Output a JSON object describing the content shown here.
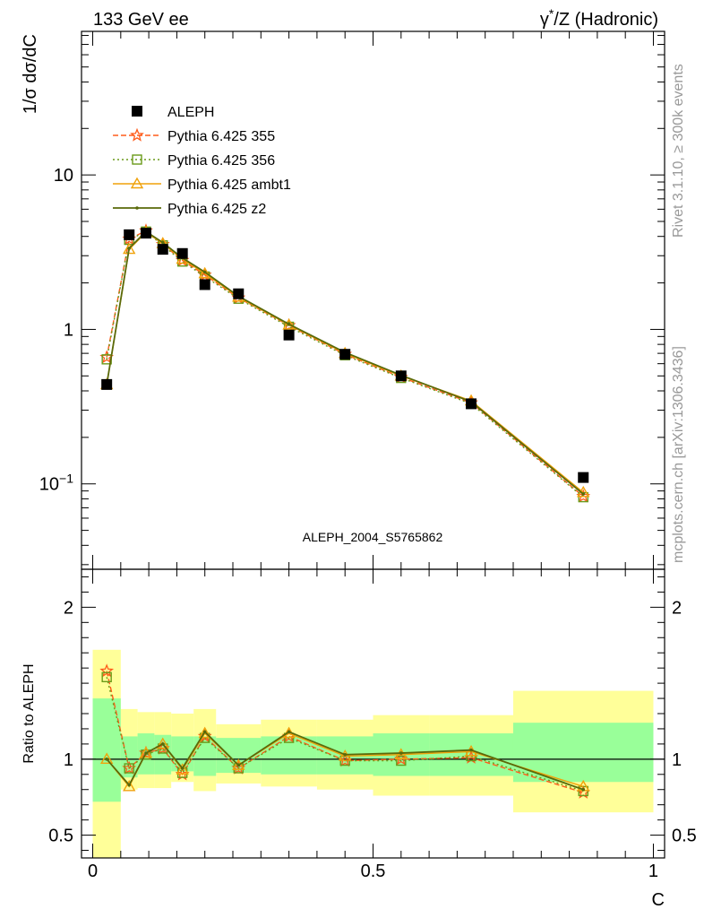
{
  "header": {
    "left": "133 GeV ee",
    "right": "γ*/Z (Hadronic)"
  },
  "side": {
    "top": "Rivet 3.1.10, ≥ 300k events",
    "bottom": "mcplots.cern.ch [arXiv:1306.3436]"
  },
  "watermark": "ALEPH_2004_S5765862",
  "colors": {
    "data": "#000000",
    "p355": "#ff5b1a",
    "p356": "#6a9a1a",
    "ambt1": "#f0a20a",
    "z2": "#5a6a0a",
    "band_inner": "#99ff99",
    "band_outer": "#ffff99"
  },
  "chart_data": [
    {
      "type": "scatter",
      "ylabel": "1/σ  dσ/dC",
      "yscale": "log",
      "xlim": [
        -0.02,
        1.02
      ],
      "ylim": [
        0.028,
        85
      ],
      "yticks": [
        {
          "value": 0.1,
          "label": "10",
          "sup": "−1"
        },
        {
          "value": 1,
          "label": "1",
          "sup": ""
        },
        {
          "value": 10,
          "label": "10",
          "sup": ""
        }
      ],
      "legend_position": "top-left",
      "x": [
        0.025,
        0.065,
        0.095,
        0.125,
        0.16,
        0.2,
        0.26,
        0.35,
        0.45,
        0.55,
        0.675,
        0.875
      ],
      "series": [
        {
          "name": "ALEPH",
          "key": "data",
          "marker": "square",
          "values": [
            0.44,
            4.1,
            4.2,
            3.3,
            3.1,
            1.95,
            1.7,
            0.92,
            0.69,
            0.5,
            0.33,
            0.11
          ]
        },
        {
          "name": "Pythia 6.425 355",
          "key": "p355",
          "marker": "star",
          "dash": "6,3",
          "values": [
            0.66,
            3.85,
            4.35,
            3.55,
            2.8,
            2.25,
            1.6,
            1.06,
            0.69,
            0.49,
            0.335,
            0.083
          ]
        },
        {
          "name": "Pythia 6.425 356",
          "key": "p356",
          "marker": "open-square",
          "dash": "2,3",
          "values": [
            0.64,
            3.8,
            4.3,
            3.5,
            2.75,
            2.2,
            1.58,
            1.04,
            0.68,
            0.485,
            0.33,
            0.082
          ]
        },
        {
          "name": "Pythia 6.425 ambt1",
          "key": "ambt1",
          "marker": "triangle",
          "dash": "",
          "values": [
            0.44,
            3.3,
            4.25,
            3.6,
            2.85,
            2.3,
            1.62,
            1.07,
            0.7,
            0.5,
            0.345,
            0.088
          ]
        },
        {
          "name": "Pythia 6.425 z2",
          "key": "z2",
          "marker": "dot",
          "dash": "",
          "values": [
            0.44,
            3.35,
            4.3,
            3.65,
            2.9,
            2.35,
            1.64,
            1.08,
            0.71,
            0.505,
            0.34,
            0.086
          ]
        }
      ]
    },
    {
      "type": "line",
      "ylabel": "Ratio to ALEPH",
      "xlabel": "C",
      "xlim": [
        -0.02,
        1.02
      ],
      "ylim": [
        0.35,
        2.25
      ],
      "yticks": [
        0.5,
        1,
        2
      ],
      "xticks": [
        {
          "value": 0,
          "label": "0"
        },
        {
          "value": 0.5,
          "label": "0.5"
        },
        {
          "value": 1,
          "label": "1"
        }
      ],
      "bands": [
        {
          "x0": 0.0,
          "x1": 0.05,
          "inner": [
            0.72,
            1.4
          ],
          "outer": [
            0.0,
            1.72
          ]
        },
        {
          "x0": 0.05,
          "x1": 0.08,
          "inner": [
            0.88,
            1.15
          ],
          "outer": [
            0.8,
            1.33
          ]
        },
        {
          "x0": 0.08,
          "x1": 0.11,
          "inner": [
            0.9,
            1.17
          ],
          "outer": [
            0.81,
            1.31
          ]
        },
        {
          "x0": 0.11,
          "x1": 0.14,
          "inner": [
            0.9,
            1.16
          ],
          "outer": [
            0.81,
            1.31
          ]
        },
        {
          "x0": 0.14,
          "x1": 0.18,
          "inner": [
            0.92,
            1.15
          ],
          "outer": [
            0.85,
            1.3
          ]
        },
        {
          "x0": 0.18,
          "x1": 0.22,
          "inner": [
            0.89,
            1.15
          ],
          "outer": [
            0.79,
            1.33
          ]
        },
        {
          "x0": 0.22,
          "x1": 0.3,
          "inner": [
            0.91,
            1.14
          ],
          "outer": [
            0.84,
            1.23
          ]
        },
        {
          "x0": 0.3,
          "x1": 0.4,
          "inner": [
            0.9,
            1.15
          ],
          "outer": [
            0.82,
            1.26
          ]
        },
        {
          "x0": 0.4,
          "x1": 0.5,
          "inner": [
            0.9,
            1.15
          ],
          "outer": [
            0.8,
            1.26
          ]
        },
        {
          "x0": 0.5,
          "x1": 0.6,
          "inner": [
            0.89,
            1.17
          ],
          "outer": [
            0.76,
            1.29
          ]
        },
        {
          "x0": 0.6,
          "x1": 0.75,
          "inner": [
            0.89,
            1.17
          ],
          "outer": [
            0.76,
            1.29
          ]
        },
        {
          "x0": 0.75,
          "x1": 1.0,
          "inner": [
            0.85,
            1.24
          ],
          "outer": [
            0.65,
            1.45
          ]
        }
      ],
      "reference": 1,
      "x": [
        0.025,
        0.065,
        0.095,
        0.125,
        0.16,
        0.2,
        0.26,
        0.35,
        0.45,
        0.55,
        0.675,
        0.875
      ],
      "series": [
        {
          "key": "p355",
          "marker": "star",
          "dash": "6,3",
          "values": [
            1.58,
            0.94,
            1.04,
            1.07,
            0.9,
            1.15,
            0.94,
            1.15,
            0.99,
            1.0,
            1.01,
            0.78
          ]
        },
        {
          "key": "p356",
          "marker": "open-square",
          "dash": "2,3",
          "values": [
            1.54,
            0.94,
            1.03,
            1.07,
            0.91,
            1.14,
            0.94,
            1.14,
            0.99,
            0.99,
            1.02,
            0.79
          ]
        },
        {
          "key": "ambt1",
          "marker": "triangle",
          "dash": "",
          "values": [
            1.0,
            0.82,
            1.04,
            1.1,
            0.93,
            1.17,
            0.96,
            1.17,
            1.02,
            1.03,
            1.05,
            0.82
          ]
        },
        {
          "key": "z2",
          "marker": "dot",
          "dash": "",
          "values": [
            1.0,
            0.83,
            1.04,
            1.1,
            0.94,
            1.18,
            0.96,
            1.18,
            1.03,
            1.04,
            1.06,
            0.8
          ]
        }
      ]
    }
  ]
}
